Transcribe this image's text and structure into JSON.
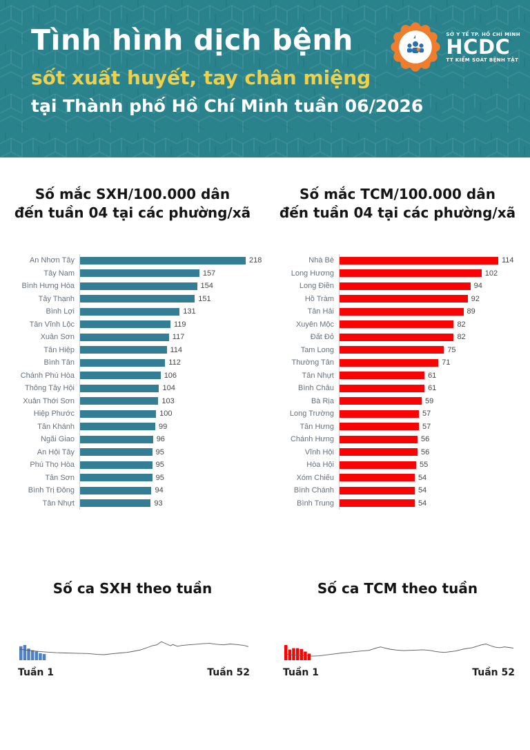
{
  "header": {
    "background_color": "#2a828c",
    "title": "Tình hình dịch bệnh",
    "subtitle": "sốt xuất huyết, tay chân miệng",
    "subtitle_color": "#edd04b",
    "subtitle2": "tại Thành phố Hồ Chí Minh tuần 06/2026",
    "logo": {
      "badge_color": "#ee7d2e",
      "org_line1": "SỞ Y TẾ TP. HỒ CHÍ MINH",
      "name": "HCDC",
      "org_line2": "TT KIỂM SOÁT BỆNH TẬT"
    }
  },
  "chart_data": [
    {
      "type": "bar",
      "orientation": "horizontal",
      "title": "Số mắc SXH/100.000 dân đến tuần 04 tại các phường/xã",
      "title_lines": [
        "Số mắc SXH/100.000 dân",
        "đến tuần 04 tại các phường/xã"
      ],
      "bar_color": "#337e94",
      "xlim": [
        0,
        218
      ],
      "categories": [
        "An Nhơn Tây",
        "Tây Nam",
        "Bình Hưng Hòa",
        "Tây Thạnh",
        "Bình Lợi",
        "Tân Vĩnh Lộc",
        "Xuân Sơn",
        "Tân Hiệp",
        "Bình Tân",
        "Chánh Phú Hòa",
        "Thông Tây Hội",
        "Xuân Thới Sơn",
        "Hiệp Phước",
        "Tân Khánh",
        "Ngãi Giao",
        "An Hội Tây",
        "Phú Thọ Hòa",
        "Tân Sơn",
        "Bình Trị Đông",
        "Tân Nhựt"
      ],
      "values": [
        218,
        157,
        154,
        151,
        131,
        119,
        117,
        114,
        112,
        106,
        104,
        103,
        100,
        99,
        96,
        95,
        95,
        95,
        94,
        93
      ]
    },
    {
      "type": "bar",
      "orientation": "horizontal",
      "title": "Số mắc TCM/100.000 dân đến tuần 04 tại các phường/xã",
      "title_lines": [
        "Số mắc TCM/100.000 dân",
        "đến tuần 04 tại các phường/xã"
      ],
      "bar_color": "#f70505",
      "xlim": [
        0,
        114
      ],
      "categories": [
        "Nhà Bè",
        "Long Hương",
        "Long Điền",
        "Hồ Tràm",
        "Tân Hải",
        "Xuyên Mộc",
        "Đất Đỏ",
        "Tam Long",
        "Thường Tân",
        "Tân Nhựt",
        "Bình Châu",
        "Bà Rịa",
        "Long Trường",
        "Tân Hưng",
        "Chánh Hưng",
        "Vĩnh Hội",
        "Hòa Hội",
        "Xóm Chiếu",
        "Bình Chánh",
        "Bình Trung"
      ],
      "values": [
        114,
        102,
        94,
        92,
        89,
        82,
        82,
        75,
        71,
        61,
        61,
        59,
        57,
        57,
        56,
        56,
        55,
        54,
        54,
        54
      ]
    },
    {
      "type": "line",
      "title": "Số ca SXH theo tuần",
      "x_axis": {
        "start_label": "Tuần 1",
        "end_label": "Tuần 52"
      },
      "bar_color": "#4f81c2",
      "line_color": "#555555",
      "intro_bars": [
        92,
        100,
        77,
        66,
        57,
        46,
        41
      ],
      "line_points": [
        [
          0,
          38
        ],
        [
          3,
          35
        ],
        [
          6,
          32
        ],
        [
          9,
          30
        ],
        [
          12,
          28
        ],
        [
          16,
          26
        ],
        [
          20,
          25
        ],
        [
          25,
          24
        ],
        [
          30,
          23
        ],
        [
          34,
          20
        ],
        [
          37,
          19
        ],
        [
          40,
          22
        ],
        [
          44,
          25
        ],
        [
          47,
          27
        ],
        [
          50,
          31
        ],
        [
          53,
          36
        ],
        [
          56,
          44
        ],
        [
          58,
          50
        ],
        [
          60,
          53
        ],
        [
          62,
          64
        ],
        [
          64,
          57
        ],
        [
          66,
          50
        ],
        [
          67,
          54
        ],
        [
          69,
          48
        ],
        [
          71,
          51
        ],
        [
          74,
          53
        ],
        [
          77,
          55
        ],
        [
          80,
          57
        ],
        [
          83,
          58
        ],
        [
          86,
          55
        ],
        [
          89,
          53
        ],
        [
          92,
          56
        ],
        [
          95,
          54
        ],
        [
          98,
          51
        ],
        [
          100,
          47
        ]
      ]
    },
    {
      "type": "line",
      "title": "Số ca TCM theo tuần",
      "x_axis": {
        "start_label": "Tuần 1",
        "end_label": "Tuần 52"
      },
      "bar_color": "#f70505",
      "line_color": "#555555",
      "intro_bars": [
        100,
        70,
        79,
        79,
        74,
        57,
        43
      ],
      "line_points": [
        [
          0,
          20
        ],
        [
          4,
          18
        ],
        [
          8,
          16
        ],
        [
          12,
          14
        ],
        [
          15,
          15
        ],
        [
          18,
          18
        ],
        [
          22,
          22
        ],
        [
          25,
          25
        ],
        [
          28,
          27
        ],
        [
          31,
          30
        ],
        [
          34,
          32
        ],
        [
          37,
          34
        ],
        [
          40,
          42
        ],
        [
          42,
          46
        ],
        [
          44,
          42
        ],
        [
          46,
          38
        ],
        [
          49,
          35
        ],
        [
          52,
          33
        ],
        [
          55,
          34
        ],
        [
          58,
          35
        ],
        [
          60,
          36
        ],
        [
          62,
          35
        ],
        [
          64,
          33
        ],
        [
          66,
          30
        ],
        [
          68,
          28
        ],
        [
          70,
          27
        ],
        [
          72,
          29
        ],
        [
          75,
          32
        ],
        [
          78,
          38
        ],
        [
          80,
          41
        ],
        [
          82,
          43
        ],
        [
          84,
          48
        ],
        [
          86,
          53
        ],
        [
          88,
          56
        ],
        [
          90,
          50
        ],
        [
          92,
          45
        ],
        [
          94,
          43
        ],
        [
          96,
          46
        ],
        [
          98,
          44
        ],
        [
          100,
          42
        ]
      ]
    }
  ]
}
